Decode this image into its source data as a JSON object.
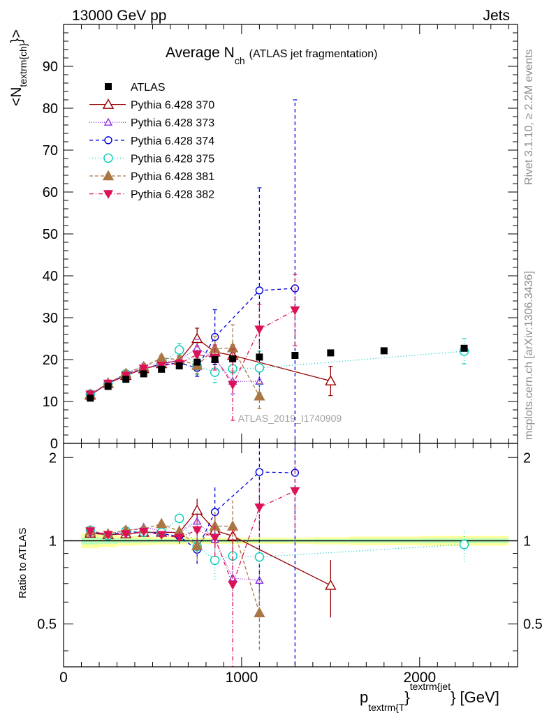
{
  "header": {
    "left": "13000 GeV pp",
    "right": "Jets"
  },
  "side_labels": {
    "rivet": "Rivet 3.1.10, ≥ 2.2M events",
    "mcplots": "mcplots.cern.ch [arXiv:1306.3436]"
  },
  "watermark": "ATLAS_2019_I1740909",
  "chart_data": {
    "type": "scatter",
    "title_main": "Average N",
    "title_sub": "ch",
    "title_note": "(ATLAS jet fragmentation)",
    "ylabel_main": "<N",
    "ylabel_sub": "textrm{ch}",
    "ylabel_end": "}>",
    "xlabel_main": "p",
    "xlabel_sub": "textrm{T",
    "xlabel_mid": "}",
    "xlabel_sup": "textrm{jet",
    "xlabel_end": "} [GeV]",
    "ratio_ylabel": "Ratio to ATLAS",
    "xlim": [
      0,
      2550
    ],
    "ylim": [
      0,
      100
    ],
    "ratio_ylim": [
      0.35,
      2.25
    ],
    "x_ticks": [
      0,
      1000,
      2000
    ],
    "x_tick_labels": [
      "0",
      "1000",
      "2000"
    ],
    "y_ticks": [
      0,
      10,
      20,
      30,
      40,
      50,
      60,
      70,
      80,
      90
    ],
    "y_tick_labels": [
      "0",
      "10",
      "20",
      "30",
      "40",
      "50",
      "60",
      "70",
      "80",
      "90"
    ],
    "ratio_ticks": [
      0.5,
      1,
      2
    ],
    "ratio_tick_labels": [
      "0.5",
      "1",
      "2"
    ],
    "legend_position": "top-left",
    "data": {
      "name": "ATLAS",
      "x": [
        150,
        250,
        350,
        450,
        550,
        650,
        750,
        850,
        950,
        1100,
        1300,
        1500,
        1800,
        2250
      ],
      "y": [
        10.8,
        13.6,
        15.3,
        16.6,
        17.7,
        18.5,
        19.4,
        20.0,
        20.2,
        20.6,
        21.0,
        21.6,
        22.1,
        22.7
      ],
      "band": [
        0.06,
        0.05,
        0.04,
        0.035,
        0.03,
        0.03,
        0.025,
        0.025,
        0.025,
        0.025,
        0.025,
        0.03,
        0.035,
        0.04
      ]
    },
    "series": [
      {
        "name": "Pythia 6.428 370",
        "color": "#990000",
        "marker": "triangle-open",
        "dash": "solid",
        "x": [
          150,
          250,
          350,
          450,
          550,
          650,
          750,
          850,
          950,
          1500
        ],
        "y": [
          11.5,
          14.3,
          16.2,
          17.8,
          19.0,
          19.8,
          25.0,
          21.8,
          21.0,
          14.9
        ],
        "err": [
          0.4,
          0.4,
          0.5,
          0.5,
          0.7,
          1.0,
          2.5,
          3.0,
          2.5,
          3.5
        ]
      },
      {
        "name": "Pythia 6.428 373",
        "color": "#8a2be2",
        "marker": "triangle-open-small",
        "dash": "1,2",
        "x": [
          150,
          250,
          350,
          450,
          550,
          650,
          750,
          850,
          950,
          1100
        ],
        "y": [
          11.6,
          14.4,
          16.6,
          18.6,
          19.2,
          19.8,
          22.8,
          20.2,
          14.8,
          14.8
        ],
        "err": [
          0.4,
          0.4,
          0.5,
          0.5,
          0.7,
          1.0,
          2.0,
          3.0,
          3.0,
          4.0
        ]
      },
      {
        "name": "Pythia 6.428 374",
        "color": "#0000dd",
        "marker": "circle-open",
        "dash": "5,4",
        "x": [
          150,
          250,
          350,
          450,
          550,
          650,
          750,
          850,
          1100,
          1300
        ],
        "y": [
          11.6,
          14.3,
          16.4,
          17.9,
          18.8,
          19.2,
          18.0,
          25.4,
          36.5,
          37.0
        ],
        "err": [
          0.4,
          0.4,
          0.5,
          0.5,
          0.7,
          1.0,
          2.0,
          6.5,
          24.5,
          45.0
        ]
      },
      {
        "name": "Pythia 6.428 375",
        "color": "#00ccbb",
        "marker": "circle-open-large",
        "dash": "1,3",
        "x": [
          150,
          250,
          350,
          450,
          550,
          650,
          750,
          850,
          950,
          1100,
          2250
        ],
        "y": [
          11.8,
          14.2,
          16.6,
          17.8,
          19.0,
          22.3,
          18.5,
          17.0,
          17.8,
          18.0,
          22.0
        ],
        "err": [
          0.4,
          0.4,
          0.5,
          0.5,
          0.7,
          1.5,
          2.0,
          2.5,
          3.0,
          4.0,
          3.0
        ]
      },
      {
        "name": "Pythia 6.428 381",
        "color": "#aa7744",
        "marker": "triangle-filled",
        "dash": "5,3",
        "x": [
          150,
          250,
          350,
          450,
          550,
          650,
          750,
          850,
          950,
          1100
        ],
        "y": [
          11.7,
          14.4,
          16.7,
          18.3,
          20.4,
          20.0,
          18.6,
          22.6,
          22.8,
          11.3
        ],
        "err": [
          0.4,
          0.4,
          0.5,
          0.5,
          0.7,
          1.0,
          2.0,
          3.0,
          5.5,
          3.0
        ]
      },
      {
        "name": "Pythia 6.428 382",
        "color": "#dd1155",
        "marker": "triangle-down-filled",
        "dash": "6,3,1,3",
        "x": [
          150,
          250,
          350,
          450,
          550,
          650,
          750,
          850,
          950,
          1100,
          1300
        ],
        "y": [
          11.7,
          14.3,
          16.2,
          17.9,
          18.6,
          19.0,
          21.2,
          20.5,
          14.0,
          27.2,
          31.8
        ],
        "err": [
          0.4,
          0.4,
          0.5,
          0.5,
          0.7,
          1.0,
          2.0,
          3.0,
          8.5,
          6.0,
          8.5
        ]
      }
    ]
  }
}
